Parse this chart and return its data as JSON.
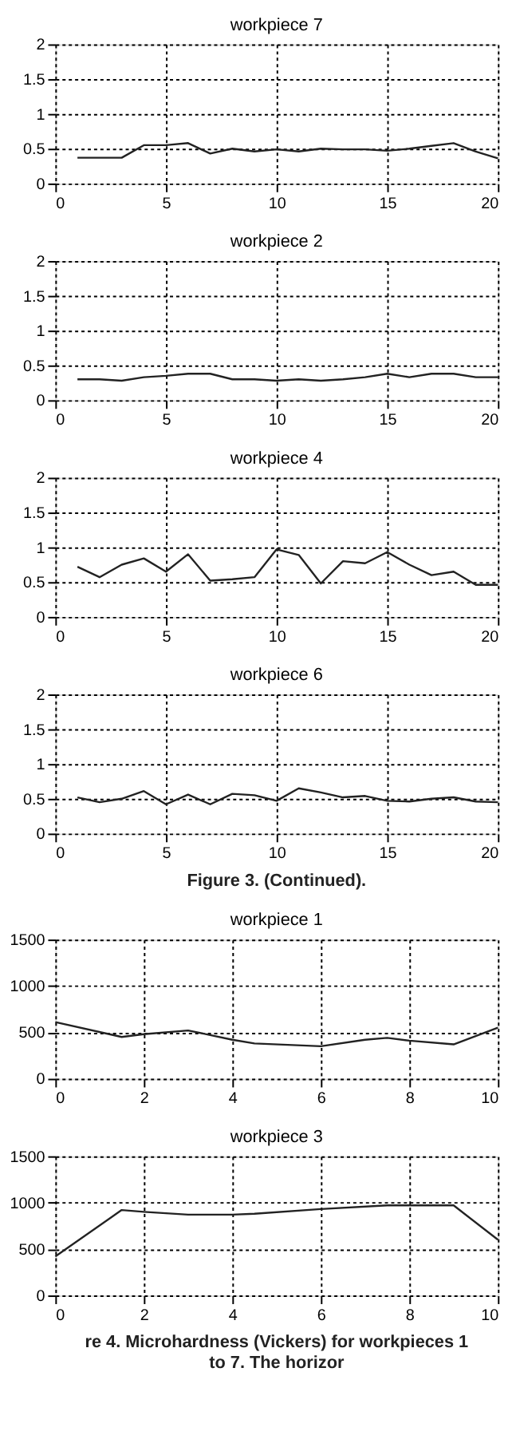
{
  "chart_data": [
    {
      "type": "line",
      "title": "workpiece 7",
      "x": [
        1,
        2,
        3,
        4,
        5,
        6,
        7,
        8,
        9,
        10,
        11,
        12,
        13,
        14,
        15,
        16,
        17,
        18,
        19,
        20
      ],
      "series": [
        {
          "color": "#222222",
          "values": [
            0.37,
            0.37,
            0.37,
            0.55,
            0.55,
            0.58,
            0.43,
            0.5,
            0.46,
            0.49,
            0.46,
            0.5,
            0.49,
            0.49,
            0.47,
            0.5,
            0.54,
            0.58,
            0.46,
            0.36
          ]
        }
      ],
      "xlim": [
        0,
        20
      ],
      "xticks": [
        0,
        5,
        10,
        15,
        20
      ],
      "ylim": [
        0,
        2
      ],
      "yticks": [
        0,
        0.5,
        1,
        1.5,
        2
      ],
      "grid": true
    },
    {
      "type": "line",
      "title": "workpiece 2",
      "x": [
        1,
        2,
        3,
        4,
        5,
        6,
        7,
        8,
        9,
        10,
        11,
        12,
        13,
        14,
        15,
        16,
        17,
        18,
        19,
        20
      ],
      "series": [
        {
          "color": "#222222",
          "values": [
            0.3,
            0.3,
            0.28,
            0.33,
            0.35,
            0.38,
            0.38,
            0.3,
            0.3,
            0.28,
            0.3,
            0.28,
            0.3,
            0.33,
            0.38,
            0.33,
            0.38,
            0.38,
            0.33,
            0.33
          ]
        }
      ],
      "xlim": [
        0,
        20
      ],
      "xticks": [
        0,
        5,
        10,
        15,
        20
      ],
      "ylim": [
        0,
        2
      ],
      "yticks": [
        0,
        0.5,
        1,
        1.5,
        2
      ],
      "grid": true
    },
    {
      "type": "line",
      "title": "workpiece 4",
      "x": [
        1,
        2,
        3,
        4,
        5,
        6,
        7,
        8,
        9,
        10,
        11,
        12,
        13,
        14,
        15,
        16,
        17,
        18,
        19,
        20
      ],
      "series": [
        {
          "color": "#222222",
          "values": [
            0.72,
            0.57,
            0.75,
            0.84,
            0.65,
            0.9,
            0.52,
            0.54,
            0.57,
            0.97,
            0.89,
            0.48,
            0.8,
            0.77,
            0.93,
            0.75,
            0.6,
            0.65,
            0.46,
            0.46
          ]
        }
      ],
      "xlim": [
        0,
        20
      ],
      "xticks": [
        0,
        5,
        10,
        15,
        20
      ],
      "ylim": [
        0,
        2
      ],
      "yticks": [
        0,
        0.5,
        1,
        1.5,
        2
      ],
      "grid": true
    },
    {
      "type": "line",
      "title": "workpiece 6",
      "x": [
        1,
        2,
        3,
        4,
        5,
        6,
        7,
        8,
        9,
        10,
        11,
        12,
        13,
        14,
        15,
        16,
        17,
        18,
        19,
        20
      ],
      "series": [
        {
          "color": "#222222",
          "values": [
            0.52,
            0.45,
            0.5,
            0.61,
            0.42,
            0.56,
            0.42,
            0.57,
            0.55,
            0.47,
            0.65,
            0.59,
            0.52,
            0.54,
            0.47,
            0.46,
            0.5,
            0.52,
            0.46,
            0.45
          ]
        }
      ],
      "xlim": [
        0,
        20
      ],
      "xticks": [
        0,
        5,
        10,
        15,
        20
      ],
      "ylim": [
        0,
        2
      ],
      "yticks": [
        0,
        0.5,
        1,
        1.5,
        2
      ],
      "grid": true,
      "annotations": [
        "Figure 3. (Continued)."
      ]
    },
    {
      "type": "line",
      "title": "workpiece 1",
      "x": [
        0,
        1.5,
        2,
        3,
        4,
        4.5,
        6,
        7,
        7.5,
        8,
        9,
        10
      ],
      "series": [
        {
          "color": "#222222",
          "values": [
            610,
            450,
            480,
            520,
            420,
            380,
            350,
            420,
            440,
            410,
            370,
            550
          ]
        }
      ],
      "xlim": [
        0,
        10
      ],
      "xticks": [
        0,
        2,
        4,
        6,
        8,
        10
      ],
      "ylim": [
        0,
        1500
      ],
      "yticks": [
        0,
        500,
        1000,
        1500
      ],
      "grid": true
    },
    {
      "type": "line",
      "title": "workpiece 3",
      "x": [
        0,
        1.5,
        2,
        3,
        4,
        4.5,
        6,
        7.5,
        9,
        10
      ],
      "series": [
        {
          "color": "#222222",
          "values": [
            420,
            920,
            900,
            870,
            870,
            880,
            930,
            970,
            970,
            600
          ]
        }
      ],
      "xlim": [
        0,
        10
      ],
      "xticks": [
        0,
        2,
        4,
        6,
        8,
        10
      ],
      "ylim": [
        0,
        1500
      ],
      "yticks": [
        0,
        500,
        1000,
        1500
      ],
      "grid": true,
      "annotations": [
        "re 4. Microhardness (Vickers) for workpieces 1 to 7. The horizor"
      ]
    }
  ]
}
